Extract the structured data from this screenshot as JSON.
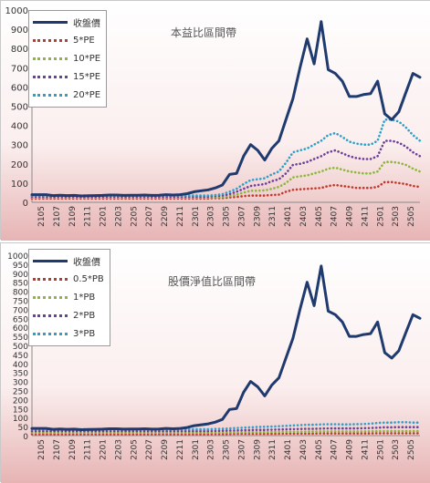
{
  "chart_data": [
    {
      "type": "line",
      "title": "本益比區間帶",
      "ylim": [
        0,
        1000
      ],
      "yticks": [
        0,
        100,
        200,
        300,
        400,
        500,
        600,
        700,
        800,
        900,
        1000
      ],
      "x_tick_labels": [
        "2105",
        "2107",
        "2109",
        "2111",
        "2201",
        "2203",
        "2205",
        "2207",
        "2209",
        "2211",
        "2301",
        "2303",
        "2305",
        "2307",
        "2309",
        "2311",
        "2401",
        "2403",
        "2405",
        "2407",
        "2409",
        "2411",
        "2501",
        "2503",
        "2505"
      ],
      "legend_placement": "top-left",
      "grid": false,
      "series": [
        {
          "name": "收盤價",
          "style": "solid",
          "color": "#1f3a6e",
          "values": [
            40,
            40,
            40,
            35,
            37,
            35,
            36,
            33,
            34,
            35,
            36,
            38,
            38,
            36,
            37,
            37,
            38,
            36,
            37,
            40,
            38,
            40,
            45,
            55,
            60,
            65,
            75,
            90,
            145,
            150,
            240,
            300,
            270,
            220,
            280,
            320,
            430,
            540,
            700,
            850,
            720,
            940,
            690,
            670,
            630,
            550,
            550,
            560,
            565,
            630,
            460,
            430,
            470,
            570,
            670,
            650
          ]
        },
        {
          "name": "5*PE",
          "style": "dotted",
          "color": "#c0392b",
          "values": [
            20,
            20,
            20,
            20,
            20,
            20,
            20,
            20,
            20,
            20,
            20,
            20,
            20,
            20,
            20,
            20,
            20,
            20,
            20,
            20,
            20,
            20,
            20,
            20,
            20,
            20,
            22,
            22,
            25,
            28,
            32,
            35,
            35,
            35,
            38,
            40,
            55,
            65,
            68,
            70,
            72,
            75,
            85,
            90,
            85,
            80,
            75,
            75,
            75,
            80,
            105,
            105,
            100,
            95,
            85,
            80
          ]
        },
        {
          "name": "10*PE",
          "style": "dotted",
          "color": "#8db63c",
          "values": [
            25,
            25,
            25,
            25,
            25,
            25,
            25,
            25,
            25,
            25,
            25,
            25,
            25,
            25,
            25,
            25,
            25,
            25,
            25,
            25,
            25,
            25,
            25,
            25,
            25,
            25,
            26,
            27,
            32,
            40,
            50,
            60,
            60,
            62,
            70,
            80,
            100,
            130,
            135,
            140,
            150,
            160,
            175,
            180,
            170,
            160,
            155,
            150,
            150,
            160,
            210,
            210,
            205,
            195,
            175,
            160
          ]
        },
        {
          "name": "15*PE",
          "style": "dotted",
          "color": "#6c3f9a",
          "values": [
            30,
            30,
            30,
            30,
            30,
            30,
            30,
            30,
            30,
            30,
            30,
            30,
            30,
            30,
            30,
            30,
            30,
            30,
            30,
            30,
            30,
            30,
            30,
            30,
            30,
            30,
            32,
            35,
            42,
            55,
            70,
            85,
            90,
            95,
            110,
            120,
            150,
            195,
            200,
            210,
            225,
            240,
            260,
            270,
            255,
            240,
            230,
            225,
            225,
            240,
            320,
            320,
            310,
            290,
            260,
            240
          ]
        },
        {
          "name": "20*PE",
          "style": "dotted",
          "color": "#2e9fc9",
          "values": [
            35,
            35,
            35,
            35,
            35,
            35,
            35,
            35,
            35,
            35,
            35,
            35,
            35,
            35,
            35,
            35,
            35,
            35,
            35,
            35,
            35,
            35,
            35,
            35,
            35,
            35,
            38,
            42,
            55,
            70,
            95,
            115,
            120,
            125,
            145,
            160,
            205,
            260,
            270,
            280,
            300,
            320,
            350,
            360,
            340,
            315,
            305,
            300,
            300,
            320,
            430,
            430,
            420,
            390,
            350,
            320
          ]
        }
      ]
    },
    {
      "type": "line",
      "title": "股價淨值比區間帶",
      "ylim": [
        0,
        1000
      ],
      "yticks": [
        0,
        50,
        100,
        150,
        200,
        250,
        300,
        350,
        400,
        450,
        500,
        550,
        600,
        650,
        700,
        750,
        800,
        850,
        900,
        950,
        1000
      ],
      "x_tick_labels": [
        "2105",
        "2107",
        "2109",
        "2111",
        "2201",
        "2203",
        "2205",
        "2207",
        "2209",
        "2211",
        "2301",
        "2303",
        "2305",
        "2307",
        "2309",
        "2311",
        "2401",
        "2403",
        "2405",
        "2407",
        "2409",
        "2411",
        "2501",
        "2503",
        "2505"
      ],
      "legend_placement": "top-left",
      "grid": false,
      "series": [
        {
          "name": "收盤價",
          "style": "solid",
          "color": "#1f3a6e",
          "values": [
            40,
            40,
            40,
            35,
            37,
            35,
            36,
            33,
            34,
            35,
            36,
            38,
            38,
            36,
            37,
            37,
            38,
            36,
            37,
            40,
            38,
            40,
            45,
            55,
            60,
            65,
            75,
            90,
            145,
            150,
            240,
            300,
            270,
            220,
            280,
            320,
            430,
            540,
            700,
            850,
            720,
            940,
            690,
            670,
            630,
            550,
            550,
            560,
            565,
            630,
            460,
            430,
            470,
            570,
            670,
            650
          ]
        },
        {
          "name": "0.5*PB",
          "style": "dotted",
          "color": "#c0392b",
          "values": [
            8,
            8,
            8,
            8,
            8,
            8,
            8,
            8,
            8,
            8,
            8,
            8,
            8,
            8,
            8,
            8,
            8,
            8,
            8,
            8,
            8,
            8,
            8,
            8,
            8,
            8,
            9,
            9,
            9,
            10,
            10,
            10,
            10,
            10,
            10,
            10,
            11,
            11,
            11,
            11,
            11,
            12,
            12,
            12,
            12,
            12,
            12,
            12,
            12,
            13,
            13,
            13,
            13,
            13,
            13,
            13
          ]
        },
        {
          "name": "1*PB",
          "style": "dotted",
          "color": "#8db63c",
          "values": [
            16,
            16,
            16,
            16,
            16,
            16,
            16,
            16,
            16,
            16,
            16,
            16,
            16,
            16,
            16,
            16,
            16,
            16,
            16,
            16,
            16,
            16,
            16,
            16,
            16,
            16,
            17,
            17,
            18,
            18,
            19,
            19,
            19,
            19,
            20,
            20,
            21,
            21,
            21,
            22,
            22,
            23,
            23,
            23,
            23,
            23,
            23,
            23,
            24,
            24,
            25,
            25,
            25,
            25,
            25,
            25
          ]
        },
        {
          "name": "2*PB",
          "style": "dotted",
          "color": "#6c3f9a",
          "values": [
            25,
            25,
            25,
            25,
            25,
            25,
            25,
            25,
            25,
            25,
            25,
            25,
            25,
            25,
            25,
            25,
            25,
            25,
            25,
            25,
            25,
            25,
            25,
            25,
            25,
            25,
            26,
            27,
            28,
            29,
            30,
            31,
            32,
            32,
            33,
            34,
            35,
            36,
            37,
            38,
            38,
            39,
            40,
            40,
            40,
            40,
            40,
            41,
            42,
            44,
            46,
            46,
            47,
            47,
            47,
            47
          ]
        },
        {
          "name": "3*PB",
          "style": "dotted",
          "color": "#2e9fc9",
          "values": [
            35,
            35,
            35,
            35,
            35,
            35,
            35,
            35,
            35,
            35,
            35,
            35,
            35,
            35,
            35,
            35,
            35,
            35,
            35,
            35,
            35,
            35,
            35,
            35,
            35,
            35,
            37,
            38,
            40,
            42,
            44,
            46,
            48,
            49,
            50,
            52,
            54,
            56,
            58,
            60,
            60,
            62,
            63,
            63,
            62,
            62,
            63,
            64,
            66,
            70,
            72,
            72,
            74,
            74,
            72,
            72
          ]
        }
      ]
    }
  ]
}
